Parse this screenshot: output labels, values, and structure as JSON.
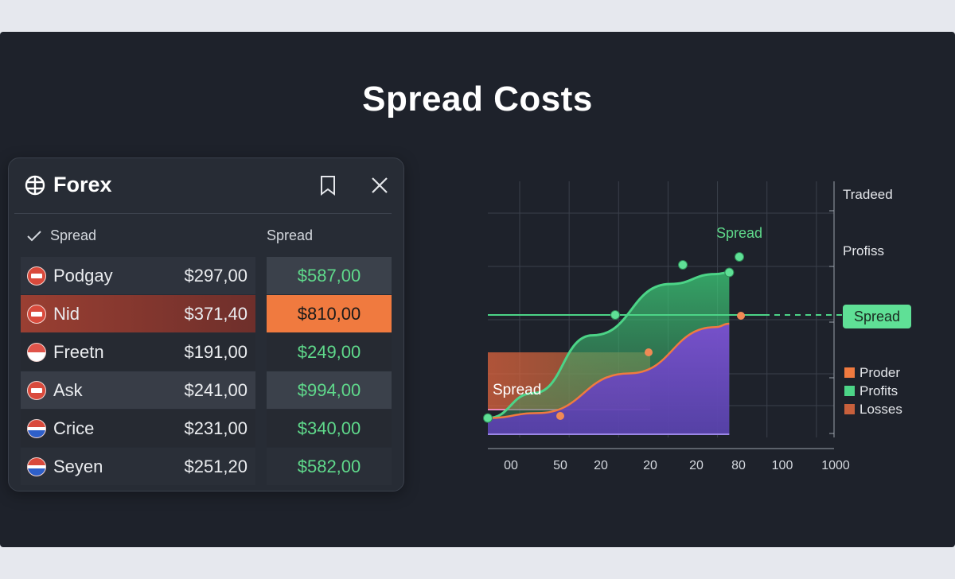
{
  "page": {
    "title": "Spread Costs"
  },
  "panel": {
    "title": "Forex",
    "icons": {
      "logo": "forex-icon",
      "bookmark": "bookmark-icon",
      "close": "close-icon",
      "check": "check-icon"
    },
    "columns": {
      "left": "Spread",
      "right": "Spread"
    },
    "rows": [
      {
        "name": "Podgay",
        "amount": "$297,00",
        "spread": "$587,00",
        "flag": "red"
      },
      {
        "name": "Nid",
        "amount": "$371,40",
        "spread": "$810,00",
        "flag": "red",
        "selected": true
      },
      {
        "name": "Freetn",
        "amount": "$191,00",
        "spread": "$249,00",
        "flag": "red"
      },
      {
        "name": "Ask",
        "amount": "$241,00",
        "spread": "$994,00",
        "flag": "red"
      },
      {
        "name": "Crice",
        "amount": "$231,00",
        "spread": "$340,00",
        "flag": "blue"
      },
      {
        "name": "Seyen",
        "amount": "$251,20",
        "spread": "$582,00",
        "flag": "stripe"
      }
    ],
    "colors": {
      "positive": "#5fd98b",
      "selected_row": "#9a3f32",
      "selected_cell": "#f07a3f"
    }
  },
  "chart_data": {
    "type": "area",
    "x_tick_labels": [
      "00",
      "50",
      "20",
      "20",
      "20",
      "80",
      "100",
      "1000"
    ],
    "right_labels": [
      "Tradeed",
      "Profiss"
    ],
    "spread_badge": "Spread",
    "green_curve_label": "Spread",
    "band_label": "Spread",
    "legend": [
      {
        "label": "Proder",
        "color": "#f07a3f"
      },
      {
        "label": "Profits",
        "color": "#4cd487"
      },
      {
        "label": "Losses",
        "color": "#c8603c"
      }
    ],
    "series": [
      {
        "name": "Profits",
        "color": "#4cd487",
        "x": [
          0,
          1,
          2.3,
          4,
          5,
          5.3
        ],
        "y": [
          0.05,
          0.2,
          0.55,
          0.86,
          0.92,
          0.93
        ]
      },
      {
        "name": "Proder",
        "color": "#f07a3f",
        "x": [
          0,
          1.1,
          3.1,
          5,
          5.3
        ],
        "y": [
          0.05,
          0.08,
          0.32,
          0.6,
          0.62
        ]
      }
    ],
    "spread_level": 0.62,
    "ylim": [
      0,
      1
    ],
    "grid": true
  }
}
